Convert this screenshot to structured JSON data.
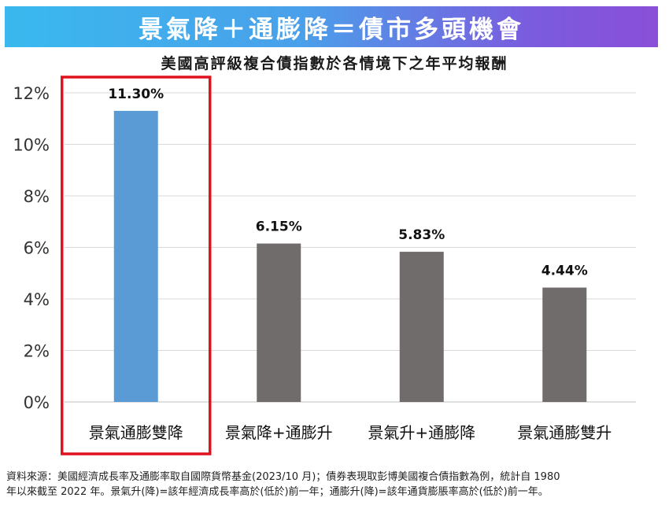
{
  "banner": {
    "title": "景氣降＋通膨降＝債市多頭機會"
  },
  "colors": {
    "highlight_bar": "#5b9bd5",
    "other_bar": "#706c6b",
    "highlight_box": "#e0121d",
    "grid": "#d9d9d9"
  },
  "chart_data": {
    "type": "bar",
    "title": "美國高評級複合債指數於各情境下之年平均報酬",
    "xlabel": "",
    "ylabel": "",
    "categories": [
      "景氣通膨雙降",
      "景氣降+通膨升",
      "景氣升+通膨降",
      "景氣通膨雙升"
    ],
    "values": [
      11.3,
      6.15,
      5.83,
      4.44
    ],
    "data_labels": [
      "11.30%",
      "6.15%",
      "5.83%",
      "4.44%"
    ],
    "ylim": [
      0,
      12
    ],
    "yticks": [
      "0%",
      "2%",
      "4%",
      "6%",
      "8%",
      "10%",
      "12%"
    ],
    "grid": true,
    "legend": "none",
    "highlighted_category": "景氣通膨雙降"
  },
  "footnote": {
    "line1": "資料來源：美國經濟成長率及通膨率取自國際貨幣基金(2023/10 月)；債券表現取彭博美國複合債指數為例，統計自 1980",
    "line2": "年以來截至 2022 年。景氣升(降)=該年經濟成長率高於(低於)前一年；通膨升(降)=該年通貨膨脹率高於(低於)前一年。"
  }
}
